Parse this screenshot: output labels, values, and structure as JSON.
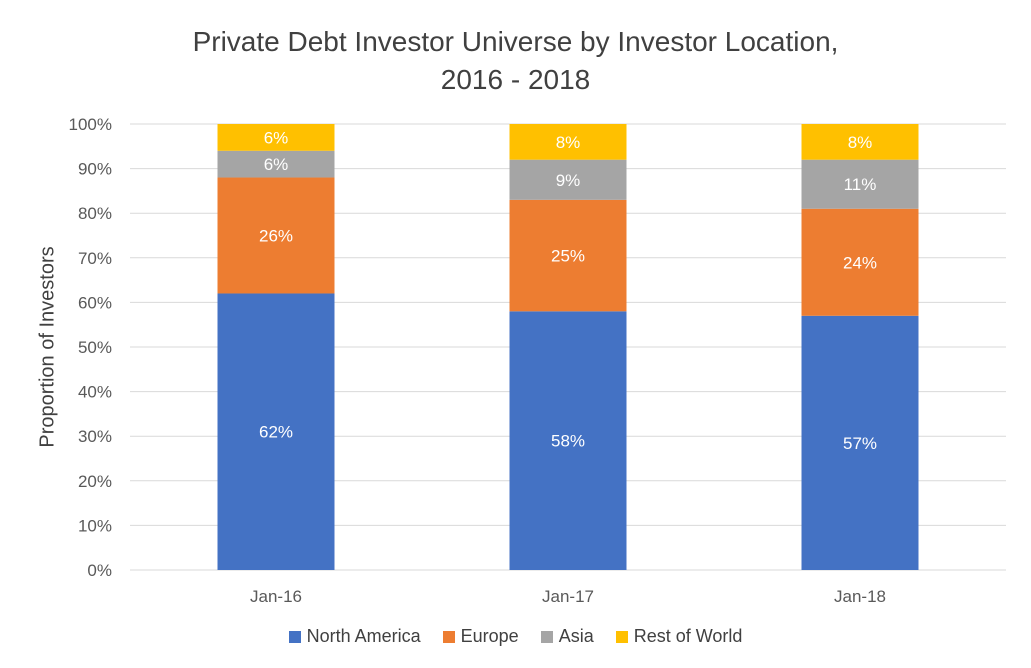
{
  "chart_data": {
    "type": "bar",
    "stacked": true,
    "title_lines": [
      "Private Debt Investor Universe by Investor Location,",
      "2016 - 2018"
    ],
    "ylabel": "Proportion of Investors",
    "xlabel": "",
    "categories": [
      "Jan-16",
      "Jan-17",
      "Jan-18"
    ],
    "yticks": [
      "0%",
      "10%",
      "20%",
      "30%",
      "40%",
      "50%",
      "60%",
      "70%",
      "80%",
      "90%",
      "100%"
    ],
    "ylim": [
      0,
      100
    ],
    "grid": true,
    "legend_position": "bottom",
    "series": [
      {
        "name": "North America",
        "color": "#4472C4",
        "label_color": "#FFFFFF",
        "values": [
          62,
          58,
          57
        ],
        "labels": [
          "62%",
          "58%",
          "57%"
        ]
      },
      {
        "name": "Europe",
        "color": "#ED7D31",
        "label_color": "#FFFFFF",
        "values": [
          26,
          25,
          24
        ],
        "labels": [
          "26%",
          "25%",
          "24%"
        ]
      },
      {
        "name": "Asia",
        "color": "#A5A5A5",
        "label_color": "#FFFFFF",
        "values": [
          6,
          9,
          11
        ],
        "labels": [
          "6%",
          "9%",
          "11%"
        ]
      },
      {
        "name": "Rest of World",
        "color": "#FFC000",
        "label_color": "#FFFFFF",
        "values": [
          6,
          8,
          8
        ],
        "labels": [
          "6%",
          "8%",
          "8%"
        ]
      }
    ]
  }
}
